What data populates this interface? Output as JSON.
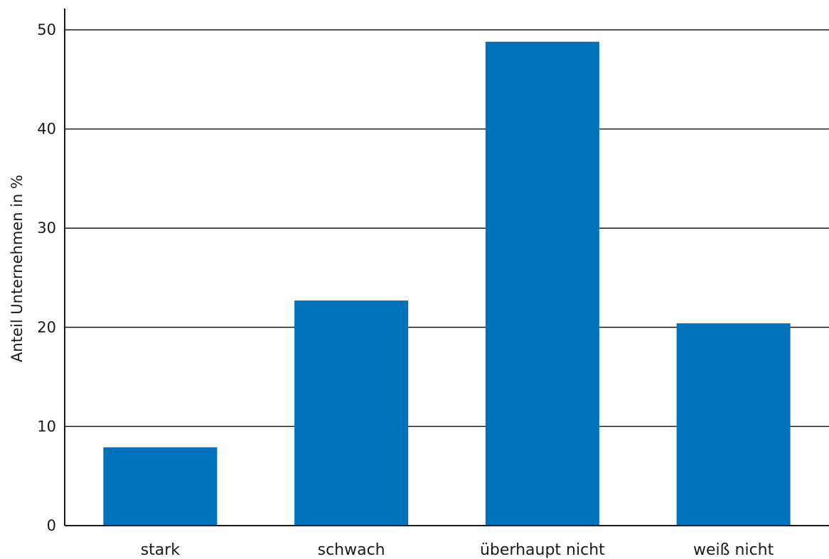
{
  "chart_data": {
    "type": "bar",
    "title": "",
    "xlabel": "",
    "ylabel": "Anteil Unternehmen in %",
    "categories": [
      "stark",
      "schwach",
      "überhaupt nicht",
      "weiß nicht"
    ],
    "values": [
      7.9,
      22.7,
      48.8,
      20.4
    ],
    "ylim": [
      0,
      50
    ],
    "yticks": [
      0,
      10,
      20,
      30,
      40,
      50
    ],
    "grid": true,
    "bar_color": "#0072bc"
  }
}
